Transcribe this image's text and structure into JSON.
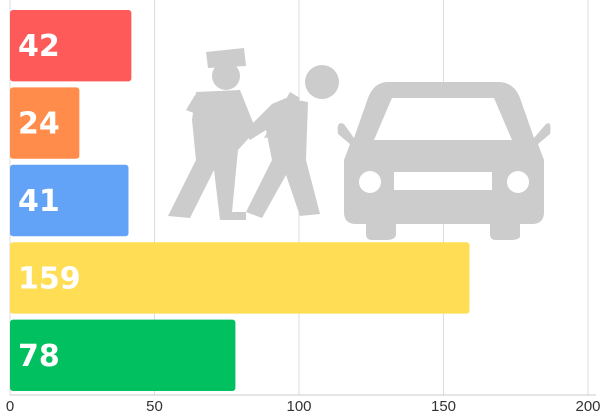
{
  "chart_data": {
    "type": "bar",
    "orientation": "horizontal",
    "values": [
      42,
      24,
      41,
      159,
      78
    ],
    "colors": [
      "#ff5a5a",
      "#ff8c4a",
      "#62a3f8",
      "#ffdd55",
      "#00c060"
    ],
    "xlim": [
      0,
      200
    ],
    "xticks": [
      0,
      50,
      100,
      150,
      200
    ],
    "grid": true
  }
}
